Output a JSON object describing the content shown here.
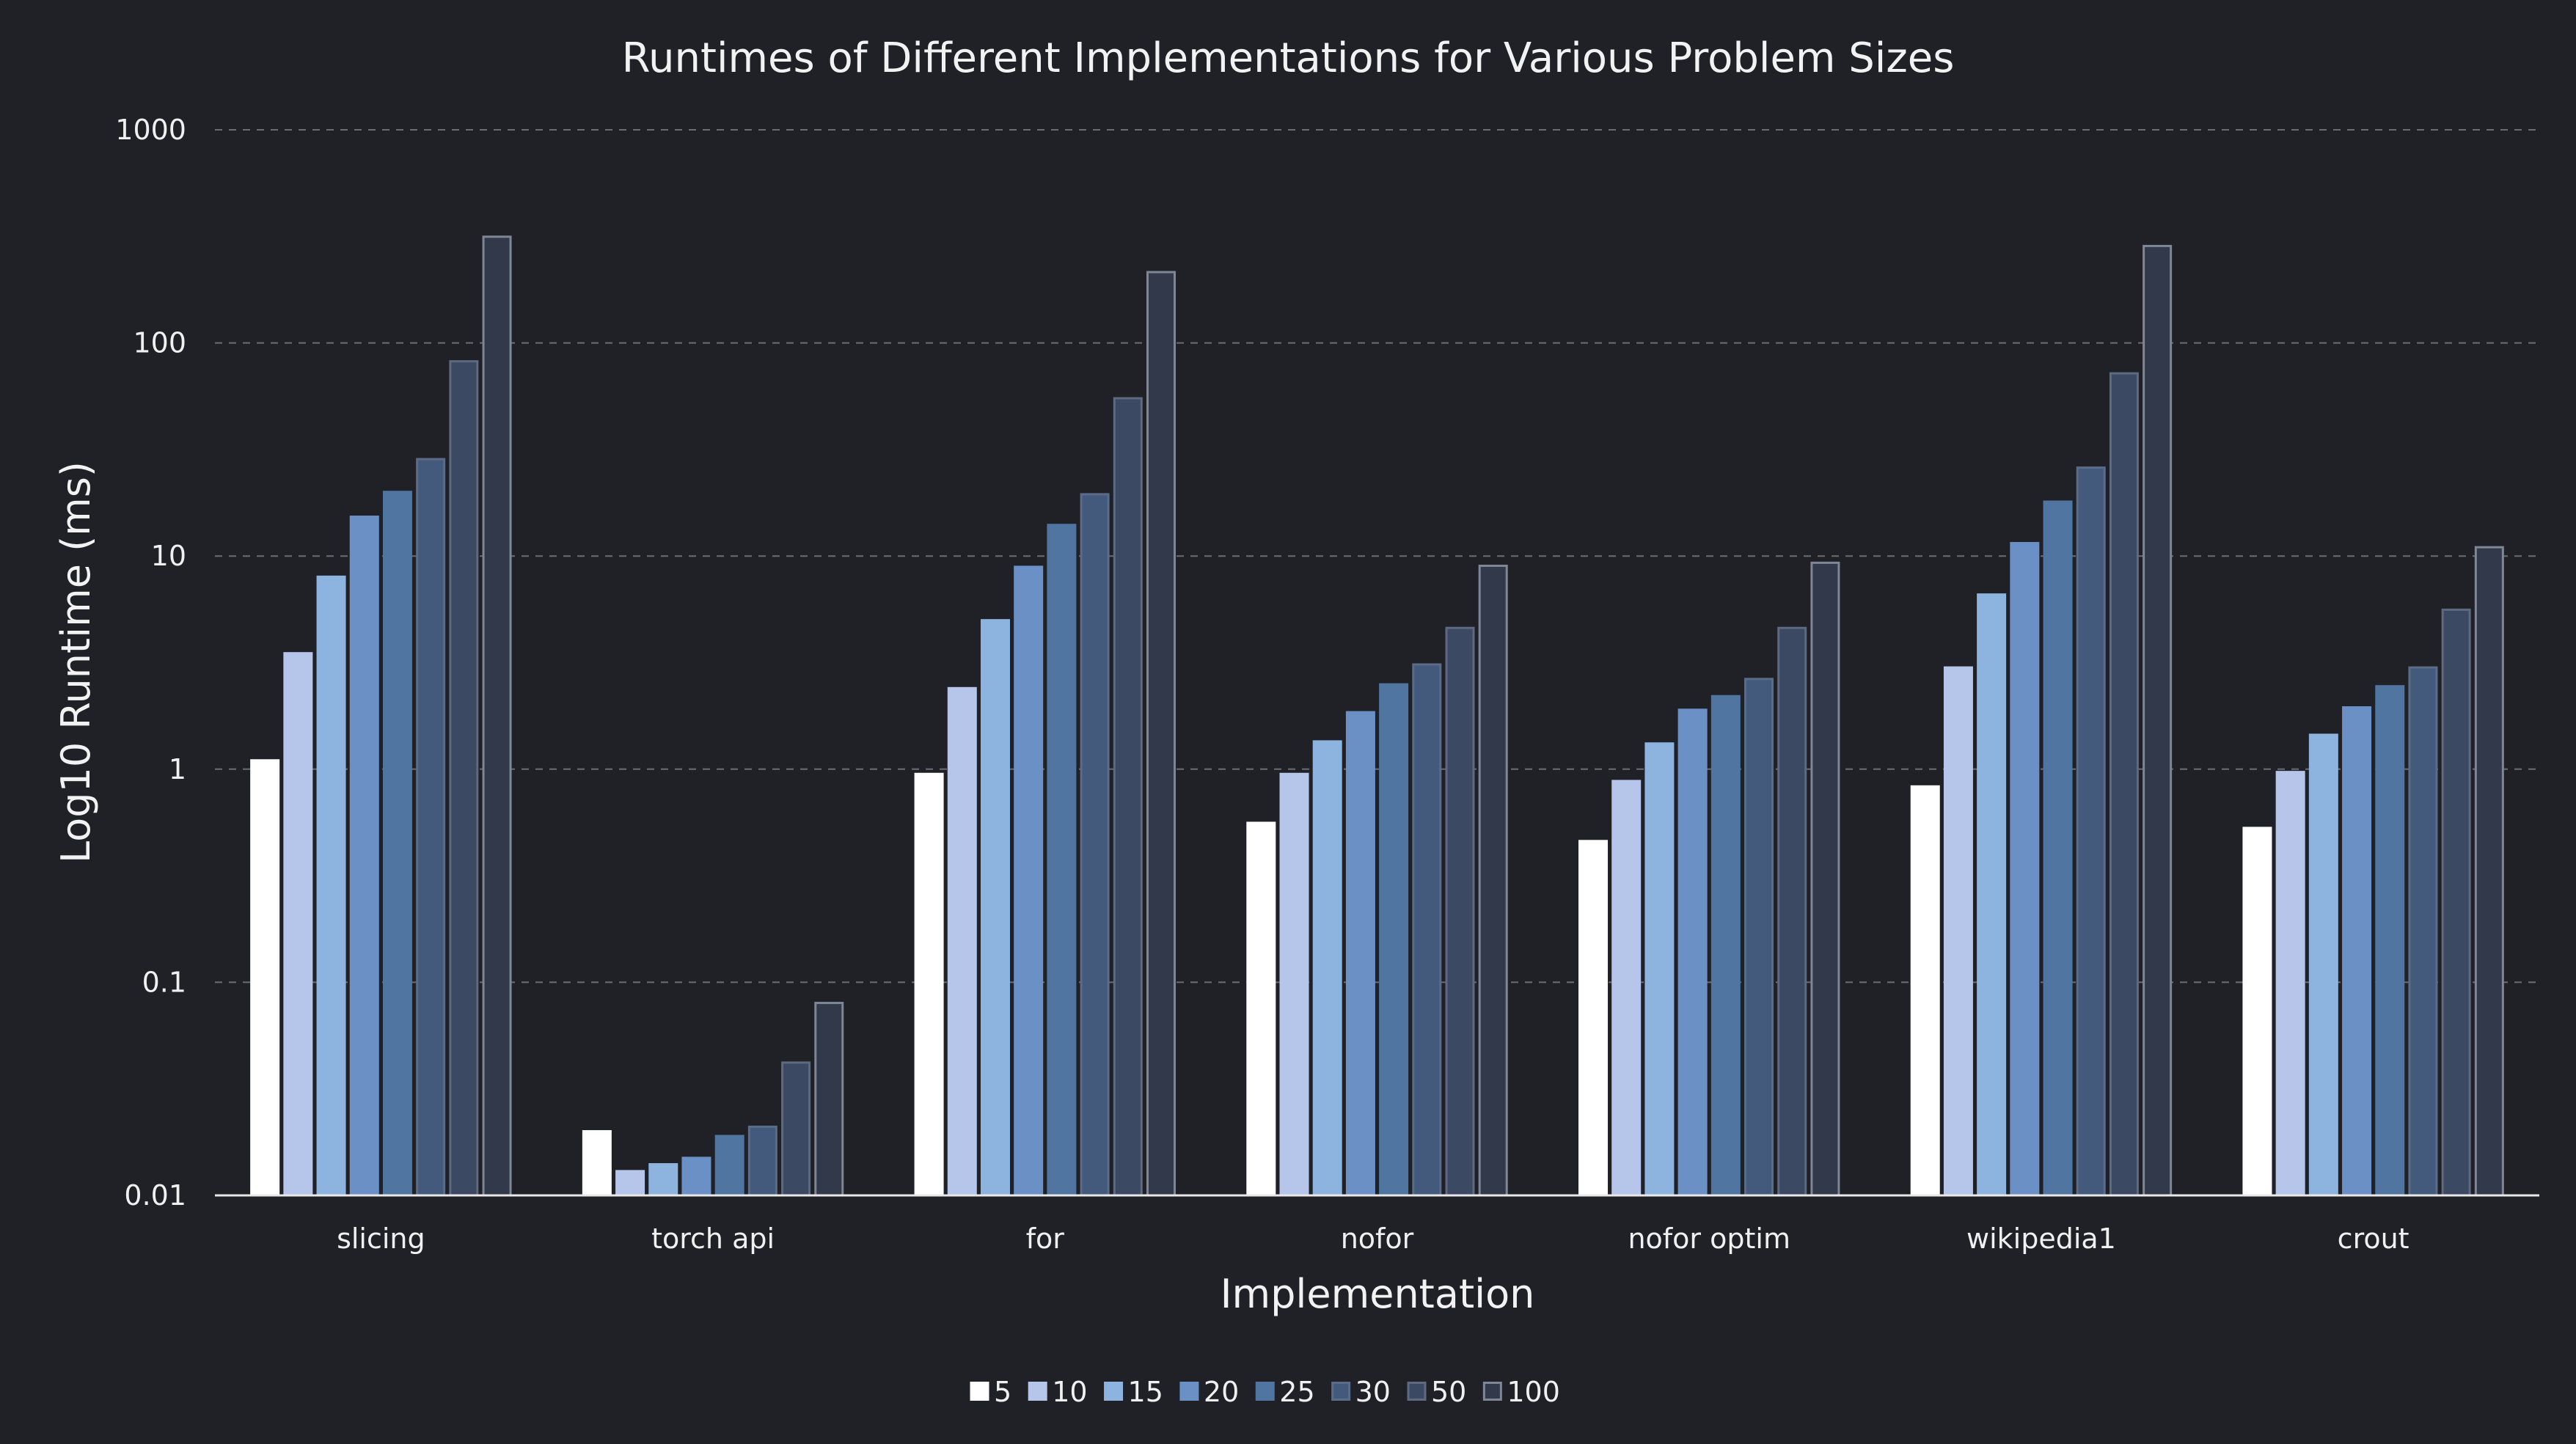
{
  "chart_data": {
    "type": "bar",
    "title": "Runtimes of Different Implementations for Various Problem Sizes",
    "xlabel": "Implementation",
    "ylabel": "Log10 Runtime (ms)",
    "yscale": "log",
    "ylim": [
      0.01,
      1000
    ],
    "yticks": [
      {
        "value": 0.01,
        "label": "0.01"
      },
      {
        "value": 0.1,
        "label": "0.1"
      },
      {
        "value": 1,
        "label": "1"
      },
      {
        "value": 10,
        "label": "10"
      },
      {
        "value": 100,
        "label": "100"
      },
      {
        "value": 1000,
        "label": "1000"
      }
    ],
    "grid": true,
    "legend_position": "bottom",
    "categories": [
      "slicing",
      "torch api",
      "for",
      "nofor",
      "nofor optim",
      "wikipedia1",
      "crout"
    ],
    "series": [
      {
        "name": "5",
        "color": "#ffffff",
        "edge": "#ffffff",
        "values": [
          1.1,
          0.02,
          0.95,
          0.56,
          0.46,
          0.83,
          0.53
        ]
      },
      {
        "name": "10",
        "color": "#b6c5ea",
        "edge": "#b6c5ea",
        "values": [
          3.5,
          0.013,
          2.4,
          0.95,
          0.88,
          3.0,
          0.97
        ]
      },
      {
        "name": "15",
        "color": "#8db3df",
        "edge": "#8db3df",
        "values": [
          8.0,
          0.014,
          5.0,
          1.35,
          1.32,
          6.6,
          1.45
        ]
      },
      {
        "name": "20",
        "color": "#6b90c6",
        "edge": "#6b90c6",
        "values": [
          15.3,
          0.015,
          8.9,
          1.85,
          1.9,
          11.5,
          1.95
        ]
      },
      {
        "name": "25",
        "color": "#4f75a0",
        "edge": "#4f75a0",
        "values": [
          20.0,
          0.019,
          14.0,
          2.5,
          2.2,
          18.0,
          2.45
        ]
      },
      {
        "name": "30",
        "color": "#445a7c",
        "edge": "#5b6c88",
        "values": [
          28.5,
          0.021,
          19.5,
          3.1,
          2.65,
          26.0,
          3.0
        ]
      },
      {
        "name": "50",
        "color": "#3c4962",
        "edge": "#5d6a80",
        "values": [
          82.0,
          0.042,
          55.0,
          4.6,
          4.6,
          72.0,
          5.6
        ]
      },
      {
        "name": "100",
        "color": "#31394a",
        "edge": "#7f8796",
        "values": [
          315.0,
          0.08,
          215.0,
          9.0,
          9.3,
          285.0,
          11.0
        ]
      }
    ]
  }
}
